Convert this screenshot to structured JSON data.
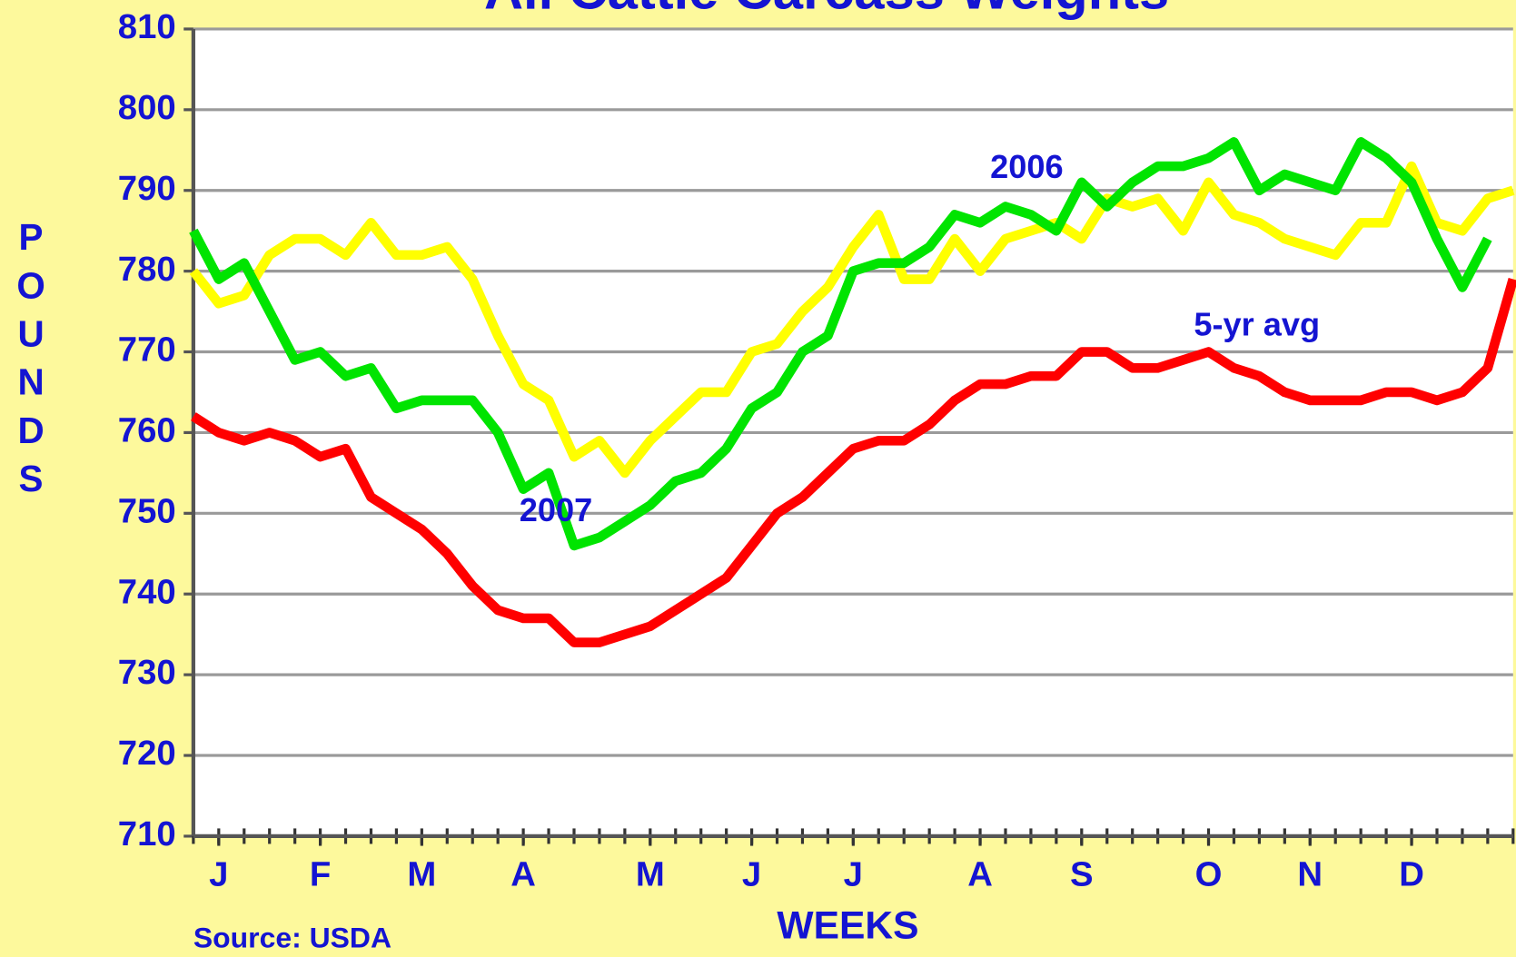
{
  "chart_data": {
    "type": "line",
    "title": "All Cattle Carcass Weights",
    "ylabel": "POUNDS",
    "xlabel": "WEEKS",
    "source": "Source:  USDA",
    "xlim": [
      0,
      52
    ],
    "xticks": [
      {
        "value": 1,
        "label": "J"
      },
      {
        "value": 5,
        "label": "F"
      },
      {
        "value": 9,
        "label": "M"
      },
      {
        "value": 13,
        "label": "A"
      },
      {
        "value": 18,
        "label": "M"
      },
      {
        "value": 22,
        "label": "J"
      },
      {
        "value": 26,
        "label": "J"
      },
      {
        "value": 31,
        "label": "A"
      },
      {
        "value": 35,
        "label": "S"
      },
      {
        "value": 40,
        "label": "O"
      },
      {
        "value": 44,
        "label": "N"
      },
      {
        "value": 48,
        "label": "D"
      }
    ],
    "ylim": [
      710,
      810
    ],
    "yticks": [
      710,
      720,
      730,
      740,
      750,
      760,
      770,
      780,
      790,
      800,
      810
    ],
    "grid": true,
    "x": [
      0,
      1,
      2,
      3,
      4,
      5,
      6,
      7,
      8,
      9,
      10,
      11,
      12,
      13,
      14,
      15,
      16,
      17,
      18,
      19,
      20,
      21,
      22,
      23,
      24,
      25,
      26,
      27,
      28,
      29,
      30,
      31,
      32,
      33,
      34,
      35,
      36,
      37,
      38,
      39,
      40,
      41,
      42,
      43,
      44,
      45,
      46,
      47,
      48,
      49,
      50,
      51,
      52
    ],
    "series": [
      {
        "name": "2006",
        "color": "#ffff00",
        "values": [
          780,
          776,
          777,
          782,
          784,
          784,
          782,
          786,
          782,
          782,
          783,
          779,
          772,
          766,
          764,
          757,
          759,
          755,
          759,
          762,
          765,
          765,
          770,
          771,
          775,
          778,
          783,
          787,
          779,
          779,
          784,
          780,
          784,
          785,
          786,
          784,
          789,
          788,
          789,
          785,
          791,
          787,
          786,
          784,
          783,
          782,
          786,
          786,
          793,
          786,
          785,
          789,
          790
        ]
      },
      {
        "name": "2007",
        "color": "#00e400",
        "values": [
          785,
          779,
          781,
          775,
          769,
          770,
          767,
          768,
          763,
          764,
          764,
          764,
          760,
          753,
          755,
          746,
          747,
          749,
          751,
          754,
          755,
          758,
          763,
          765,
          770,
          772,
          780,
          781,
          781,
          783,
          787,
          786,
          788,
          787,
          785,
          791,
          788,
          791,
          793,
          793,
          794,
          796,
          790,
          792,
          791,
          790,
          796,
          794,
          791,
          784,
          778,
          784,
          null
        ]
      },
      {
        "name": "5-yr avg",
        "color": "#ff0000",
        "values": [
          762,
          760,
          759,
          760,
          759,
          757,
          758,
          752,
          750,
          748,
          745,
          741,
          738,
          737,
          737,
          734,
          734,
          735,
          736,
          738,
          740,
          742,
          746,
          750,
          752,
          755,
          758,
          759,
          759,
          761,
          764,
          766,
          766,
          767,
          767,
          770,
          770,
          768,
          768,
          769,
          770,
          768,
          767,
          765,
          764,
          764,
          764,
          765,
          765,
          764,
          765,
          768,
          779
        ]
      }
    ]
  }
}
